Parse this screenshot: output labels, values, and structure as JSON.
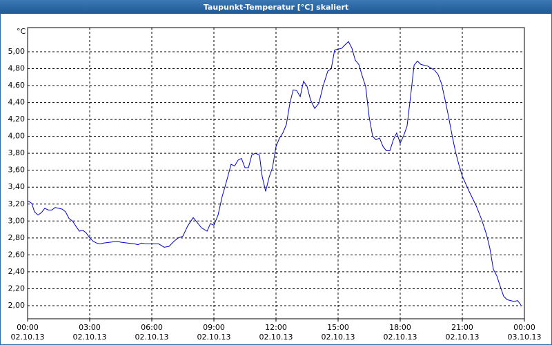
{
  "chart_data": {
    "type": "line",
    "title": "Taupunkt-Temperatur [°C] skaliert",
    "y_unit": "°C",
    "x": [
      0,
      0.2,
      0.33,
      0.5,
      0.67,
      0.83,
      1,
      1.17,
      1.33,
      1.5,
      1.67,
      1.83,
      2,
      2.17,
      2.33,
      2.5,
      2.67,
      2.83,
      3,
      3.17,
      3.33,
      3.5,
      3.67,
      4,
      4.33,
      4.5,
      4.83,
      5.17,
      5.33,
      5.5,
      5.73,
      6,
      6.33,
      6.6,
      6.83,
      7.07,
      7.27,
      7.5,
      7.73,
      8,
      8.17,
      8.4,
      8.67,
      8.83,
      9,
      9.2,
      9.4,
      9.6,
      9.83,
      10,
      10.17,
      10.33,
      10.5,
      10.67,
      10.83,
      11,
      11.2,
      11.33,
      11.5,
      11.67,
      11.83,
      12,
      12.17,
      12.33,
      12.5,
      12.67,
      12.83,
      13,
      13.17,
      13.33,
      13.5,
      13.67,
      13.87,
      14.07,
      14.27,
      14.5,
      14.67,
      14.83,
      15,
      15.17,
      15.33,
      15.5,
      15.67,
      15.83,
      16,
      16.17,
      16.33,
      16.5,
      16.67,
      16.83,
      17,
      17.17,
      17.33,
      17.5,
      17.67,
      17.83,
      18,
      18.17,
      18.33,
      18.5,
      18.67,
      18.83,
      19,
      19.33,
      19.67,
      19.83,
      20,
      20.17,
      20.33,
      20.5,
      20.67,
      20.83,
      21,
      21.33,
      21.67,
      21.93,
      22.17,
      22.33,
      22.5,
      22.67,
      22.83,
      23,
      23.17,
      23.33,
      23.5,
      23.67,
      23.83
    ],
    "series": [
      {
        "color": "#0000cc",
        "values": [
          3.24,
          3.21,
          3.11,
          3.07,
          3.1,
          3.15,
          3.13,
          3.13,
          3.16,
          3.15,
          3.14,
          3.11,
          3.03,
          3.0,
          2.94,
          2.88,
          2.89,
          2.86,
          2.8,
          2.76,
          2.74,
          2.73,
          2.74,
          2.75,
          2.76,
          2.75,
          2.74,
          2.73,
          2.72,
          2.74,
          2.73,
          2.73,
          2.73,
          2.69,
          2.7,
          2.76,
          2.8,
          2.82,
          2.94,
          3.04,
          2.99,
          2.92,
          2.88,
          2.97,
          2.95,
          3.07,
          3.29,
          3.46,
          3.67,
          3.65,
          3.72,
          3.74,
          3.63,
          3.63,
          3.78,
          3.8,
          3.78,
          3.53,
          3.35,
          3.52,
          3.63,
          3.88,
          3.98,
          4.04,
          4.14,
          4.39,
          4.55,
          4.54,
          4.47,
          4.65,
          4.59,
          4.43,
          4.33,
          4.39,
          4.59,
          4.77,
          4.8,
          5.02,
          5.03,
          5.04,
          5.08,
          5.12,
          5.04,
          4.9,
          4.85,
          4.71,
          4.59,
          4.23,
          4.0,
          3.96,
          3.98,
          3.88,
          3.83,
          3.83,
          3.96,
          4.04,
          3.92,
          4.01,
          4.12,
          4.47,
          4.84,
          4.89,
          4.85,
          4.83,
          4.78,
          4.73,
          4.62,
          4.43,
          4.24,
          4.02,
          3.82,
          3.67,
          3.53,
          3.35,
          3.18,
          3.02,
          2.84,
          2.68,
          2.43,
          2.35,
          2.23,
          2.11,
          2.07,
          2.06,
          2.05,
          2.06,
          2.01
        ]
      }
    ],
    "xlim": [
      0,
      24
    ],
    "xticks": [
      {
        "value": 0,
        "label": "00:00"
      },
      {
        "value": 3,
        "label": "03:00"
      },
      {
        "value": 6,
        "label": "06:00"
      },
      {
        "value": 9,
        "label": "09:00"
      },
      {
        "value": 12,
        "label": "12:00"
      },
      {
        "value": 15,
        "label": "15:00"
      },
      {
        "value": 18,
        "label": "18:00"
      },
      {
        "value": 21,
        "label": "21:00"
      },
      {
        "value": 24,
        "label": "00:00"
      }
    ],
    "xtick_dates": [
      "02.10.13",
      "02.10.13",
      "02.10.13",
      "02.10.13",
      "02.10.13",
      "02.10.13",
      "02.10.13",
      "02.10.13",
      "03.10.13"
    ],
    "ylim": [
      1.845,
      5.285
    ],
    "yticks": [
      {
        "value": 2.0,
        "label": "2,00"
      },
      {
        "value": 2.2,
        "label": "2,20"
      },
      {
        "value": 2.4,
        "label": "2,40"
      },
      {
        "value": 2.6,
        "label": "2,60"
      },
      {
        "value": 2.8,
        "label": "2,80"
      },
      {
        "value": 3.0,
        "label": "3,00"
      },
      {
        "value": 3.2,
        "label": "3,20"
      },
      {
        "value": 3.4,
        "label": "3,40"
      },
      {
        "value": 3.6,
        "label": "3,60"
      },
      {
        "value": 3.8,
        "label": "3,80"
      },
      {
        "value": 4.0,
        "label": "4,00"
      },
      {
        "value": 4.2,
        "label": "4,20"
      },
      {
        "value": 4.4,
        "label": "4,40"
      },
      {
        "value": 4.6,
        "label": "4,60"
      },
      {
        "value": 4.8,
        "label": "4,80"
      },
      {
        "value": 5.0,
        "label": "5,00"
      }
    ],
    "grid": true
  }
}
